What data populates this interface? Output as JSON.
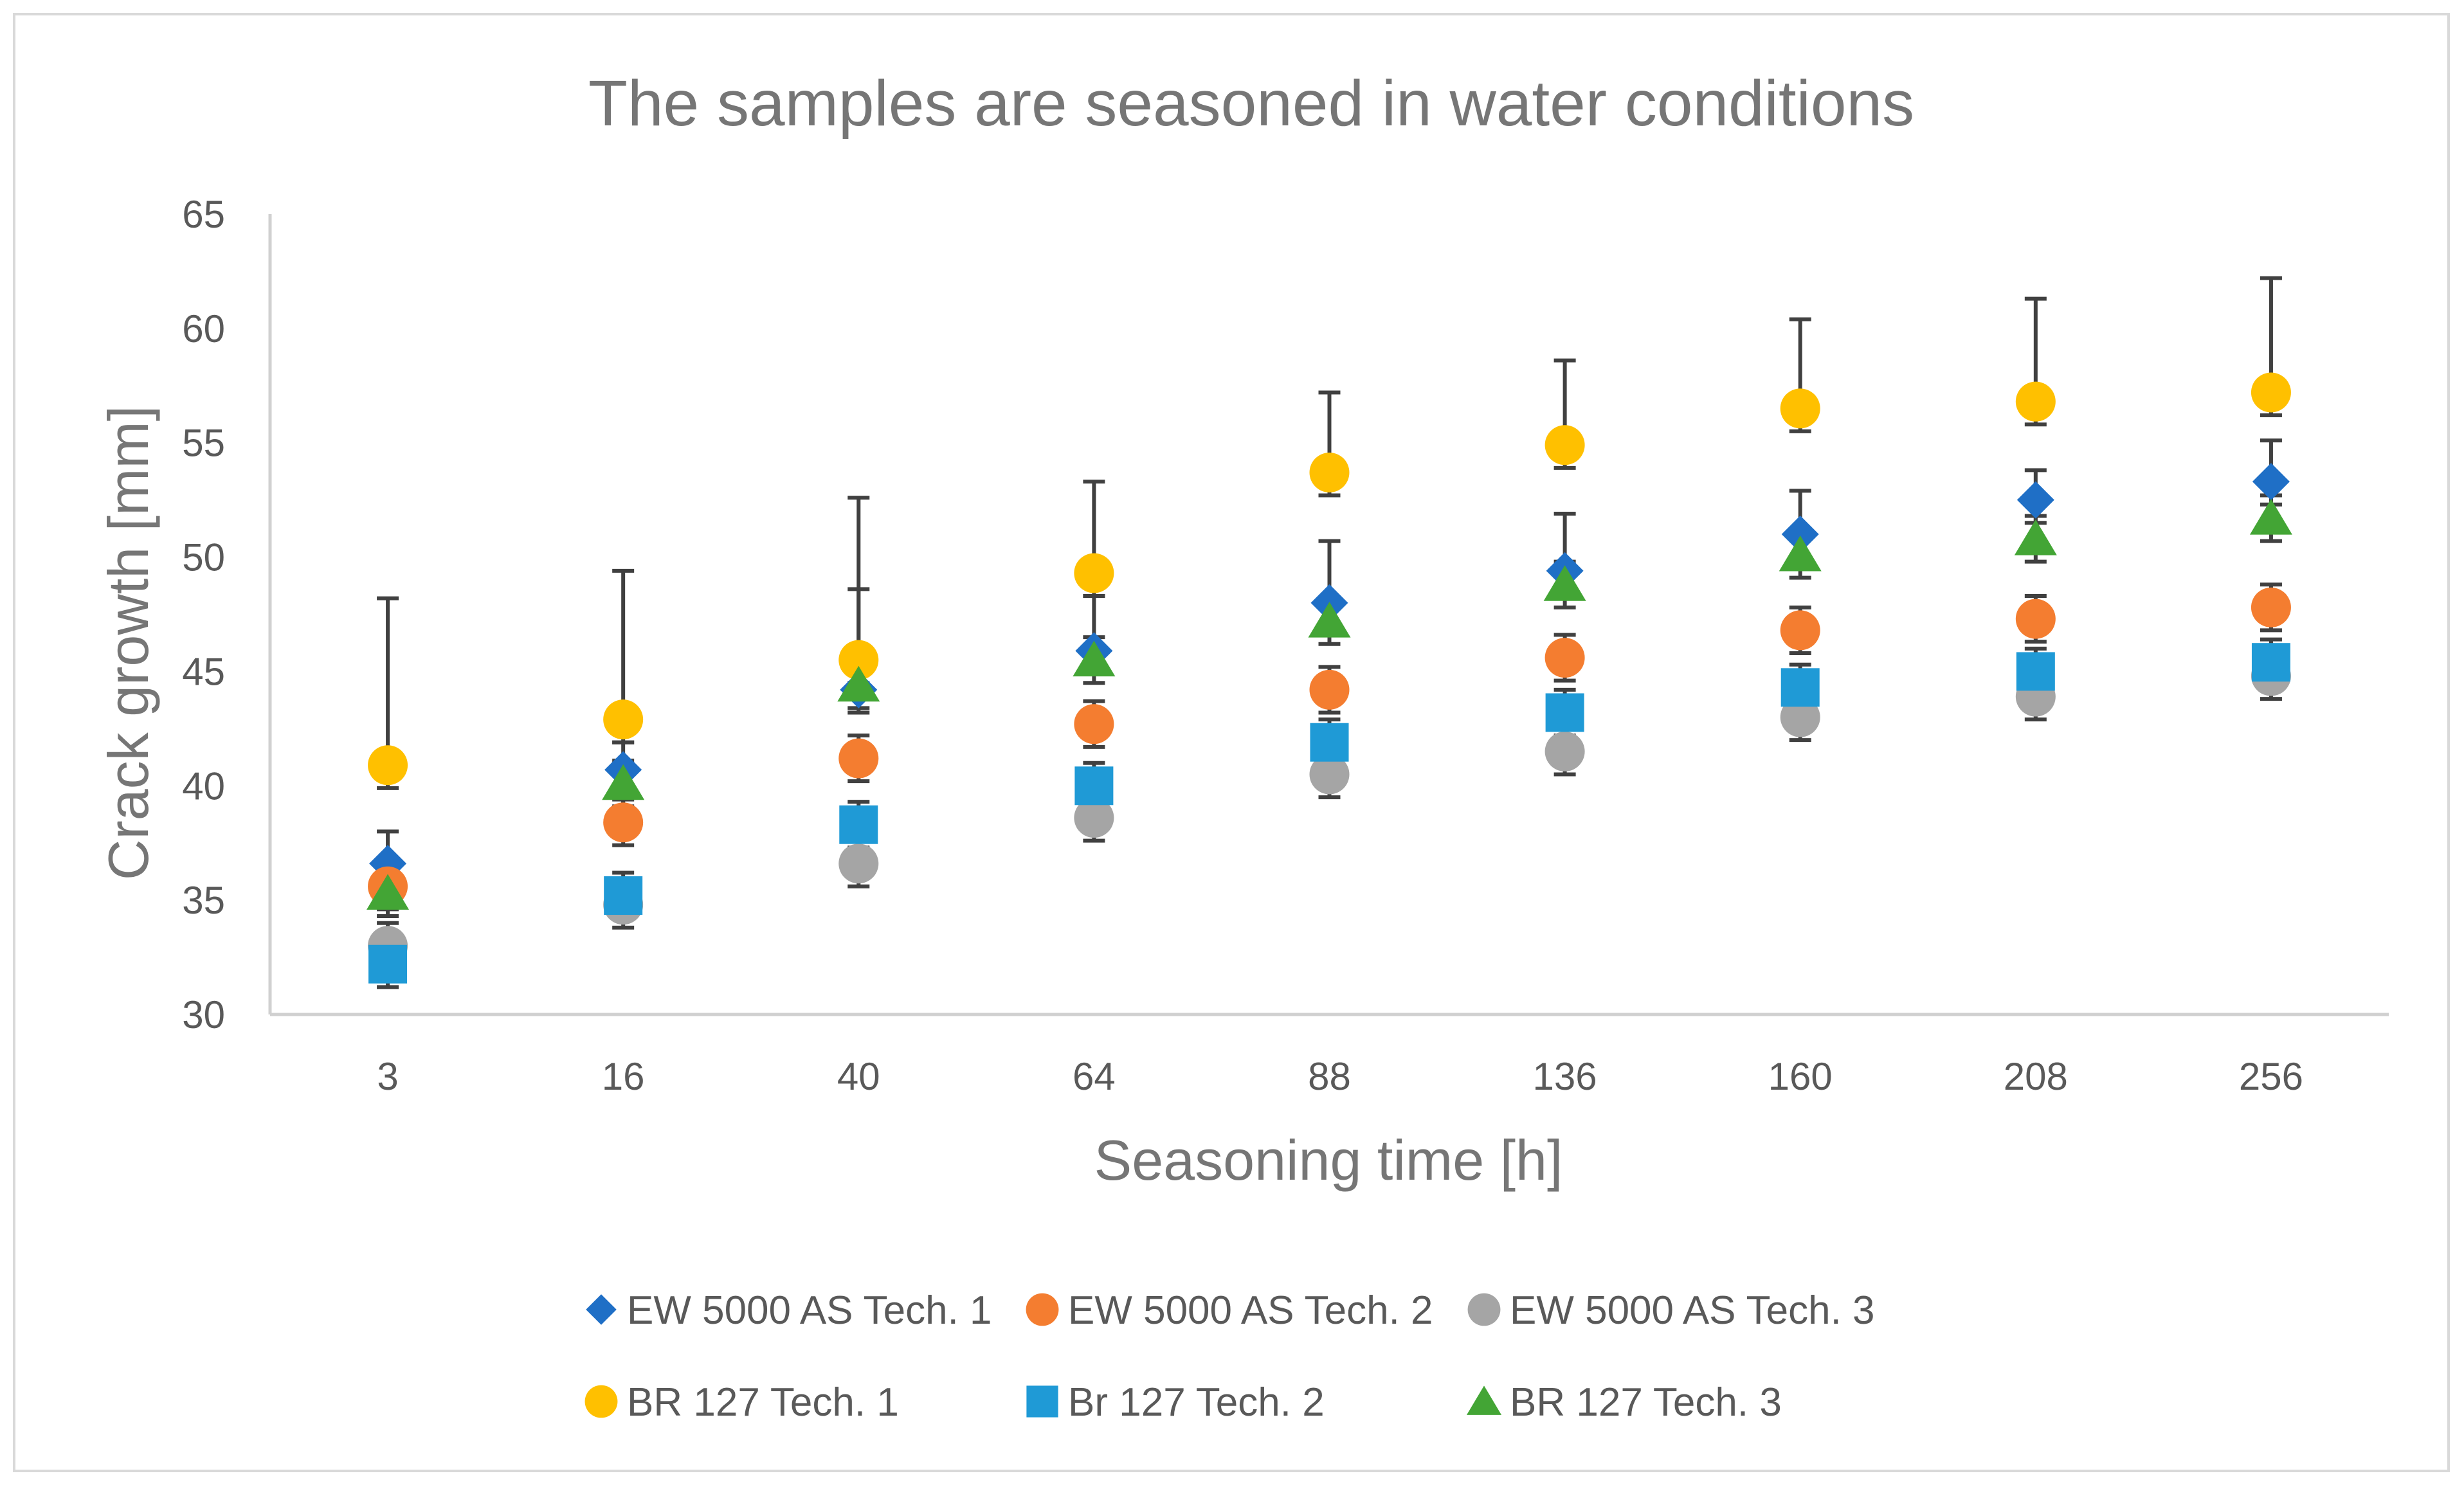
{
  "chart_data": {
    "type": "scatter",
    "title": "The samples are seasoned in water conditions",
    "xlabel": "Seasoning time [h]",
    "ylabel": "Crack growth [mm]",
    "categories": [
      "3",
      "16",
      "40",
      "64",
      "88",
      "136",
      "160",
      "208",
      "256"
    ],
    "ylim": [
      30,
      65
    ],
    "yticks": [
      30,
      35,
      40,
      45,
      50,
      55,
      60,
      65
    ],
    "grid": false,
    "legend_position": "bottom",
    "error_bar_color": "#404040",
    "axis_color": "#d0d0d0",
    "series": [
      {
        "name": "EW 5000 AS Tech. 1",
        "marker": "diamond",
        "color": "#1f6fc6",
        "values": [
          36.6,
          40.7,
          44.2,
          45.9,
          48.0,
          49.4,
          51.0,
          52.5,
          53.3
        ],
        "err_plus": [
          1.4,
          1.2,
          4.4,
          2.4,
          2.7,
          2.5,
          1.9,
          1.3,
          1.8
        ],
        "err_minus": [
          1.4,
          1.2,
          1.0,
          1.0,
          1.0,
          1.0,
          1.0,
          1.0,
          1.0
        ]
      },
      {
        "name": "EW 5000 AS Tech. 2",
        "marker": "circle",
        "color": "#f47d30",
        "values": [
          35.6,
          38.4,
          41.2,
          42.7,
          44.2,
          45.6,
          46.8,
          47.3,
          47.8
        ],
        "err_plus": [
          1.0,
          1.0,
          1.0,
          1.0,
          1.0,
          1.0,
          1.0,
          1.0,
          1.0
        ],
        "err_minus": [
          1.0,
          1.0,
          1.0,
          1.0,
          1.0,
          1.0,
          1.0,
          1.0,
          1.0
        ]
      },
      {
        "name": "EW 5000 AS Tech. 3",
        "marker": "circle",
        "color": "#a5a5a5",
        "values": [
          33.0,
          34.8,
          36.6,
          38.6,
          40.5,
          41.5,
          43.0,
          43.9,
          44.8
        ],
        "err_plus": [
          1.0,
          1.0,
          1.0,
          1.0,
          1.0,
          1.0,
          1.0,
          1.0,
          1.0
        ],
        "err_minus": [
          1.0,
          1.0,
          1.0,
          1.0,
          1.0,
          1.0,
          1.0,
          1.0,
          1.0
        ]
      },
      {
        "name": "BR 127 Tech. 1",
        "marker": "circle",
        "color": "#ffc000",
        "values": [
          40.9,
          42.9,
          45.5,
          49.3,
          53.7,
          54.9,
          56.5,
          56.8,
          57.2
        ],
        "err_plus": [
          7.3,
          6.5,
          7.1,
          4.0,
          3.5,
          3.7,
          3.9,
          4.5,
          5.0
        ],
        "err_minus": [
          1.0,
          1.0,
          1.0,
          1.0,
          1.0,
          1.0,
          1.0,
          1.0,
          1.0
        ]
      },
      {
        "name": "Br 127 Tech. 2",
        "marker": "square",
        "color": "#1f9ad6",
        "values": [
          32.2,
          35.2,
          38.3,
          40.0,
          41.9,
          43.2,
          44.3,
          45.0,
          45.4
        ],
        "err_plus": [
          1.0,
          1.0,
          1.0,
          1.0,
          1.0,
          1.0,
          1.0,
          1.0,
          1.0
        ],
        "err_minus": [
          1.0,
          1.0,
          1.0,
          1.0,
          1.0,
          1.0,
          1.0,
          1.0,
          1.0
        ]
      },
      {
        "name": "BR 127 Tech. 3",
        "marker": "triangle",
        "color": "#43a535",
        "values": [
          35.3,
          40.1,
          44.4,
          45.5,
          47.2,
          48.8,
          50.1,
          50.8,
          51.7
        ],
        "err_plus": [
          1.0,
          1.0,
          1.0,
          1.0,
          1.0,
          1.0,
          1.0,
          1.0,
          1.0
        ],
        "err_minus": [
          1.0,
          1.0,
          1.0,
          1.0,
          1.0,
          1.0,
          1.0,
          1.0,
          1.0
        ]
      }
    ]
  }
}
